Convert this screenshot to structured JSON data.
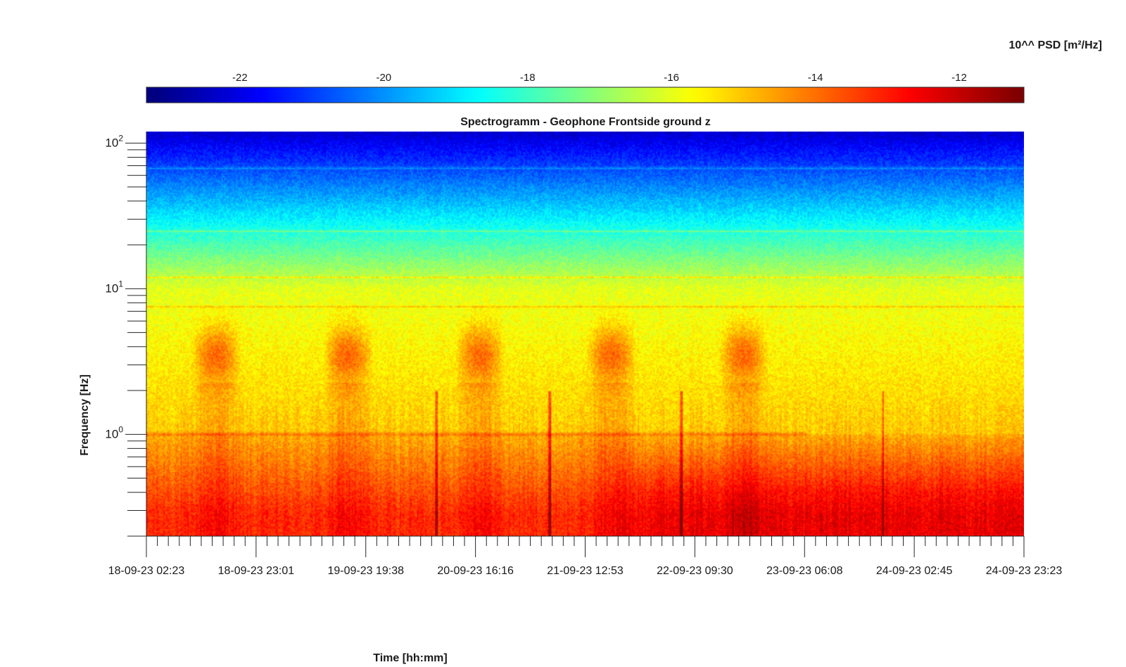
{
  "chart_data": {
    "type": "heatmap",
    "title": "Spectrogramm - Geophone Frontside ground z",
    "xlabel": "Time [hh:mm]",
    "ylabel": "Frequency [Hz]",
    "y_scale": "log",
    "ylim": [
      0.2,
      120
    ],
    "y_ticks": [
      {
        "base": "10",
        "exp": "0",
        "value": 1
      },
      {
        "base": "10",
        "exp": "1",
        "value": 10
      },
      {
        "base": "10",
        "exp": "2",
        "value": 100
      }
    ],
    "x_tick_labels": [
      "18-09-23 02:23",
      "18-09-23 23:01",
      "19-09-23 19:38",
      "20-09-23 16:16",
      "21-09-23 12:53",
      "22-09-23 09:30",
      "23-09-23 06:08",
      "24-09-23 02:45",
      "24-09-23 23:23"
    ],
    "colorbar": {
      "label": "10^^ PSD [m²/Hz]",
      "colormap": "jet",
      "range": [
        -23.3,
        -11.1
      ],
      "ticks": [
        "-22",
        "-20",
        "-18",
        "-16",
        "-14",
        "-12"
      ]
    },
    "features": {
      "spectral_lines_hz": [
        7.5,
        12,
        25,
        68
      ],
      "daily_activity_band_hz": [
        2.5,
        5
      ],
      "daily_activity_days": [
        "18-09-23",
        "19-09-23",
        "20-09-23",
        "21-09-23",
        "22-09-23"
      ],
      "line_near_1hz": 1.0,
      "low_frequency_max_level": -12
    }
  }
}
